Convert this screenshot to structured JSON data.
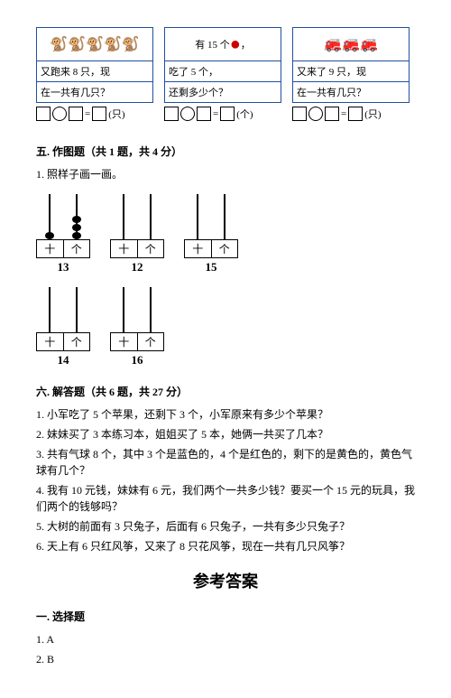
{
  "top": {
    "box1": {
      "img_label": "🐒🐒🐒🐒🐒",
      "line1": "又跑来 8 只，现",
      "line2": "在一共有几只？",
      "unit": "(只)"
    },
    "box2": {
      "img_label_prefix": "有 15 个",
      "line1": "吃了 5 个，",
      "line2": "还剩多少个？",
      "unit": "(个)"
    },
    "box3": {
      "img_label": "🚒🚒🚒",
      "line1": "又来了 9 只，现",
      "line2": "在一共有几只？",
      "unit": "(只)"
    }
  },
  "sec5": {
    "head": "五. 作图题（共 1 题，共 4 分）",
    "q1": "1. 照样子画一画。"
  },
  "abacus": {
    "unit_ten": "十",
    "unit_one": "个",
    "items": [
      {
        "num": "13",
        "beads_ten": 1,
        "beads_one": 3
      },
      {
        "num": "12",
        "beads_ten": 0,
        "beads_one": 0
      },
      {
        "num": "15",
        "beads_ten": 0,
        "beads_one": 0
      },
      {
        "num": "14",
        "beads_ten": 0,
        "beads_one": 0
      },
      {
        "num": "16",
        "beads_ten": 0,
        "beads_one": 0
      }
    ]
  },
  "sec6": {
    "head": "六. 解答题（共 6 题，共 27 分）",
    "q1": "1. 小军吃了 5 个苹果，还剩下 3 个，小军原来有多少个苹果？",
    "q2": "2. 妹妹买了 3 本练习本，姐姐买了 5 本，她俩一共买了几本？",
    "q3": "3. 共有气球 8 个，其中 3 个是蓝色的，4 个是红色的，剩下的是黄色的，黄色气球有几个？",
    "q4": "4. 我有 10 元钱，妹妹有 6 元，我们两个一共多少钱？要买一个 15 元的玩具，我们两个的钱够吗？",
    "q5": "5. 大树的前面有 3 只兔子，后面有 6 只兔子，一共有多少只兔子？",
    "q6": "6. 天上有 6 只红风筝，又来了 8 只花风筝，现在一共有几只风筝？"
  },
  "answers": {
    "title": "参考答案",
    "head": "一. 选择题",
    "a1": "1. A",
    "a2": "2. B"
  }
}
